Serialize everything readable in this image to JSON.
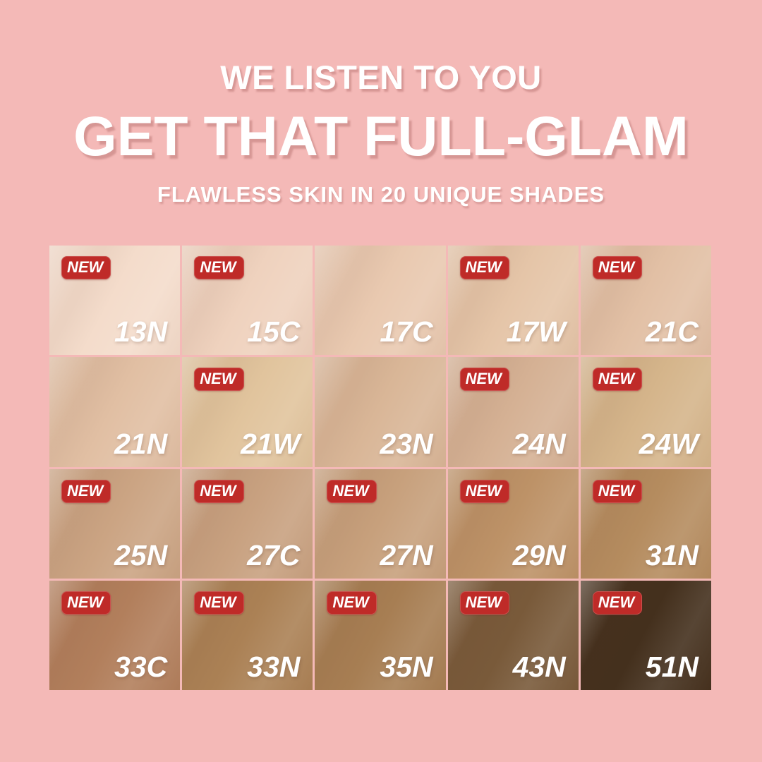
{
  "page": {
    "background_color": "#F4B9B7"
  },
  "header": {
    "line1": "WE LISTEN TO YOU",
    "line2": "GET THAT FULL-GLAM",
    "line3": "FLAWLESS SKIN IN 20 UNIQUE SHADES"
  },
  "badge": {
    "label": "NEW",
    "background_color": "#BF2B28",
    "text_color": "#FFFFFF"
  },
  "shade_grid": {
    "columns": 5,
    "rows": 4,
    "shades": [
      {
        "name": "13N",
        "color": "#F4DCCB",
        "new": true
      },
      {
        "name": "15C",
        "color": "#EFD2BE",
        "new": true
      },
      {
        "name": "17C",
        "color": "#E9C9B0",
        "new": false
      },
      {
        "name": "17W",
        "color": "#E5C5A8",
        "new": true
      },
      {
        "name": "21C",
        "color": "#E2C0A5",
        "new": true
      },
      {
        "name": "21N",
        "color": "#E1BFA3",
        "new": false
      },
      {
        "name": "21W",
        "color": "#E1C49D",
        "new": true
      },
      {
        "name": "23N",
        "color": "#D9B697",
        "new": false
      },
      {
        "name": "24N",
        "color": "#D5B194",
        "new": true
      },
      {
        "name": "24W",
        "color": "#D5B58B",
        "new": true
      },
      {
        "name": "25N",
        "color": "#CBA483",
        "new": true
      },
      {
        "name": "27C",
        "color": "#C8A180",
        "new": true
      },
      {
        "name": "27N",
        "color": "#C7A07C",
        "new": true
      },
      {
        "name": "29N",
        "color": "#BD9267",
        "new": true
      },
      {
        "name": "31N",
        "color": "#B58C5F",
        "new": true
      },
      {
        "name": "33C",
        "color": "#B27F5C",
        "new": true
      },
      {
        "name": "33N",
        "color": "#AB8155",
        "new": true
      },
      {
        "name": "35N",
        "color": "#A77E53",
        "new": true
      },
      {
        "name": "43N",
        "color": "#795A3A",
        "new": true
      },
      {
        "name": "51N",
        "color": "#44301D",
        "new": true
      }
    ]
  }
}
